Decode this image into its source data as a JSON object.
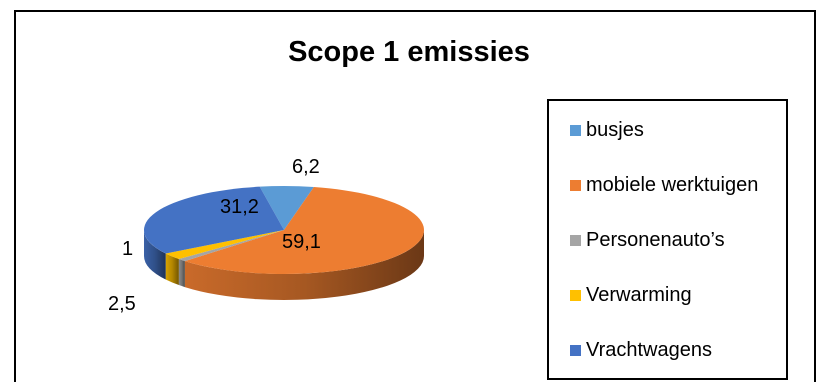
{
  "chart_data": {
    "type": "pie",
    "title": "Scope 1 emissies",
    "categories": [
      "busjes",
      "mobiele werktuigen",
      "Personenauto’s",
      "Verwarming",
      "Vrachtwagens"
    ],
    "values": [
      6.2,
      59.1,
      1,
      2.5,
      31.2
    ],
    "value_labels": [
      "6,2",
      "59,1",
      "1",
      "2,5",
      "31,2"
    ],
    "colors": [
      "#5b9bd5",
      "#ed7d31",
      "#a5a5a5",
      "#ffc000",
      "#4472c4"
    ],
    "legend_position": "right",
    "style": "3d"
  }
}
